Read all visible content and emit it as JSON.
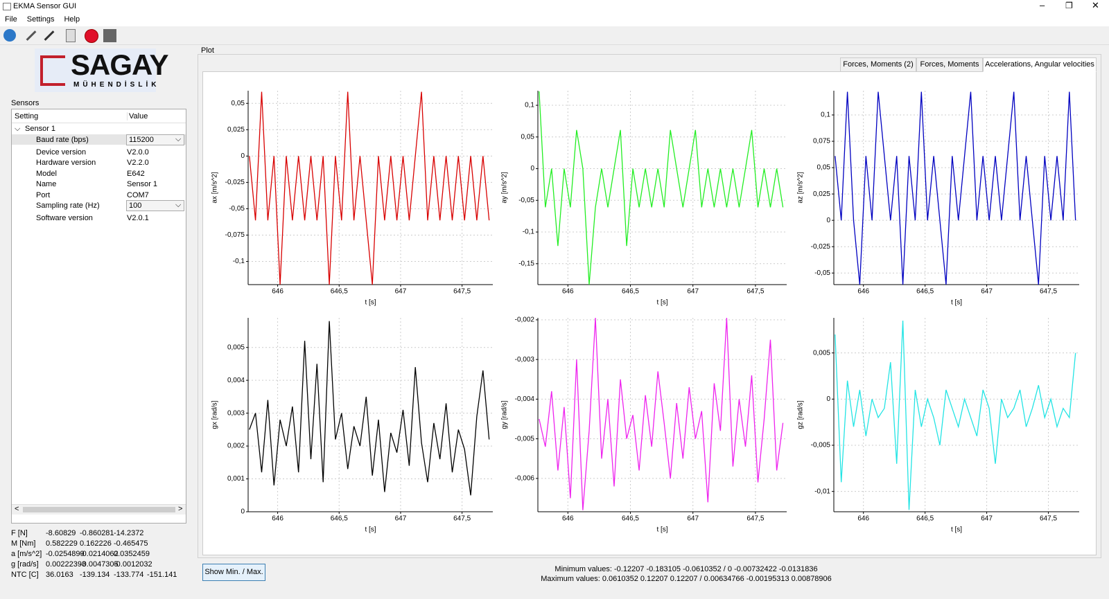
{
  "window": {
    "title": "EKMA Sensor GUI",
    "menu": [
      "File",
      "Settings",
      "Help"
    ]
  },
  "logo": {
    "name": "SAGAY",
    "sub": "MÜHENDİSLİK"
  },
  "sensors": {
    "title": "Sensors",
    "columns": [
      "Setting",
      "Value"
    ],
    "group": "Sensor 1",
    "rows": [
      [
        "Baud rate (bps)",
        "115200"
      ],
      [
        "Device version",
        "V2.0.0"
      ],
      [
        "Hardware version",
        "V2.2.0"
      ],
      [
        "Model",
        "E642"
      ],
      [
        "Name",
        "Sensor 1"
      ],
      [
        "Port",
        "COM7"
      ],
      [
        "Sampling rate (Hz)",
        "100"
      ],
      [
        "Software version",
        "V2.0.1"
      ]
    ]
  },
  "readouts": [
    [
      "F [N]",
      "-8.60829",
      "-0.860281",
      "-14.2372"
    ],
    [
      "M [Nm]",
      "0.582229",
      "0.162226",
      "-0.465475"
    ],
    [
      "a [m/s^2]",
      "-0.0254899",
      "-0.0214062",
      "0.0352459"
    ],
    [
      "g [rad/s]",
      "0.00222393",
      "-0.0047305",
      "-0.0012032"
    ],
    [
      "NTC [C]",
      "36.0163",
      "-139.134",
      "-133.774",
      "-151.141"
    ]
  ],
  "plot": {
    "title": "Plot",
    "tabs": [
      "Forces, Moments (2)",
      "Forces, Moments",
      "Accelerations, Angular velocities"
    ],
    "active_tab": 2,
    "button": "Show Min. / Max.",
    "min_text": "Minimum values: -0.12207 -0.183105 -0.0610352 / 0 -0.00732422 -0.0131836",
    "max_text": "Maximum values: 0.0610352 0.12207 0.12207 / 0.00634766 -0.00195313 0.00878906"
  },
  "chart_data": [
    {
      "type": "line",
      "ylabel": "ax [m/s^2]",
      "xlabel": "t [s]",
      "color": "#d80000",
      "grid": true,
      "x": [
        645.77,
        645.82,
        645.87,
        645.92,
        645.97,
        646.02,
        646.07,
        646.12,
        646.17,
        646.22,
        646.27,
        646.32,
        646.37,
        646.42,
        646.47,
        646.52,
        646.57,
        646.62,
        646.67,
        646.72,
        646.77,
        646.82,
        646.87,
        646.92,
        646.97,
        647.02,
        647.07,
        647.12,
        647.17,
        647.22,
        647.27,
        647.32,
        647.37,
        647.42,
        647.47,
        647.52,
        647.57,
        647.62,
        647.67,
        647.72
      ],
      "values": [
        0,
        -0.061,
        0.061,
        -0.061,
        0,
        -0.122,
        0,
        -0.061,
        0,
        -0.061,
        0,
        -0.061,
        0,
        -0.122,
        0,
        -0.061,
        0.061,
        -0.061,
        0,
        -0.061,
        -0.122,
        0,
        -0.061,
        0,
        -0.061,
        0,
        -0.061,
        0,
        0.061,
        -0.061,
        0,
        -0.061,
        0,
        -0.061,
        0,
        -0.061,
        0,
        -0.061,
        0,
        -0.061
      ],
      "xlim": [
        645.76,
        647.75
      ],
      "ylim": [
        -0.122,
        0.062
      ],
      "xticks": [
        646,
        {
          "value": 646.5,
          "label": "646,5"
        },
        647,
        {
          "value": 647.5,
          "label": "647,5"
        }
      ],
      "yticks": [
        {
          "value": 0.05,
          "label": "0,05"
        },
        {
          "value": 0.025,
          "label": "0,025"
        },
        0,
        {
          "value": -0.025,
          "label": "-0,025"
        },
        {
          "value": -0.05,
          "label": "-0,05"
        },
        {
          "value": -0.075,
          "label": "-0,075"
        },
        {
          "value": -0.1,
          "label": "-0,1"
        }
      ]
    },
    {
      "type": "line",
      "ylabel": "ay [m/s^2]",
      "xlabel": "t [s]",
      "color": "#22ee22",
      "grid": true,
      "x": [
        645.77,
        645.82,
        645.87,
        645.92,
        645.97,
        646.02,
        646.07,
        646.12,
        646.17,
        646.22,
        646.27,
        646.32,
        646.37,
        646.42,
        646.47,
        646.52,
        646.57,
        646.62,
        646.67,
        646.72,
        646.77,
        646.82,
        646.87,
        646.92,
        646.97,
        647.02,
        647.07,
        647.12,
        647.17,
        647.22,
        647.27,
        647.32,
        647.37,
        647.42,
        647.47,
        647.52,
        647.57,
        647.62,
        647.67,
        647.72
      ],
      "values": [
        0.122,
        -0.061,
        0,
        -0.122,
        0,
        -0.061,
        0.061,
        0,
        -0.183,
        -0.061,
        0,
        -0.061,
        0,
        0.061,
        -0.122,
        0,
        -0.061,
        0,
        -0.061,
        0,
        -0.061,
        0.061,
        0,
        -0.061,
        0,
        0.061,
        -0.061,
        0,
        -0.061,
        0,
        -0.061,
        0,
        -0.061,
        0,
        0.061,
        -0.061,
        0,
        -0.061,
        0,
        -0.061
      ],
      "xlim": [
        645.76,
        647.75
      ],
      "ylim": [
        -0.183,
        0.123
      ],
      "xticks": [
        646,
        {
          "value": 646.5,
          "label": "646,5"
        },
        647,
        {
          "value": 647.5,
          "label": "647,5"
        }
      ],
      "yticks": [
        {
          "value": 0.1,
          "label": "0,1"
        },
        {
          "value": 0.05,
          "label": "0,05"
        },
        0,
        {
          "value": -0.05,
          "label": "-0,05"
        },
        {
          "value": -0.1,
          "label": "-0,1"
        },
        {
          "value": -0.15,
          "label": "-0,15"
        }
      ]
    },
    {
      "type": "line",
      "ylabel": "az [m/s^2]",
      "xlabel": "t [s]",
      "color": "#0000c0",
      "grid": true,
      "x": [
        645.77,
        645.82,
        645.87,
        645.92,
        645.97,
        646.02,
        646.07,
        646.12,
        646.17,
        646.22,
        646.27,
        646.32,
        646.37,
        646.42,
        646.47,
        646.52,
        646.57,
        646.62,
        646.67,
        646.72,
        646.77,
        646.82,
        646.87,
        646.92,
        646.97,
        647.02,
        647.07,
        647.12,
        647.17,
        647.22,
        647.27,
        647.32,
        647.37,
        647.42,
        647.47,
        647.52,
        647.57,
        647.62,
        647.67,
        647.72
      ],
      "values": [
        0.061,
        0,
        0.122,
        0,
        -0.061,
        0.061,
        0,
        0.122,
        0.061,
        0,
        0.061,
        -0.061,
        0.061,
        0,
        0.122,
        0,
        0.061,
        0,
        -0.061,
        0.061,
        0,
        0.061,
        0.122,
        0,
        0.061,
        0,
        0.061,
        0,
        0.061,
        0.122,
        0,
        0.061,
        0,
        -0.061,
        0.061,
        0,
        0.061,
        0,
        0.122,
        0
      ],
      "xlim": [
        645.76,
        647.75
      ],
      "ylim": [
        -0.061,
        0.123
      ],
      "xticks": [
        646,
        {
          "value": 646.5,
          "label": "646,5"
        },
        647,
        {
          "value": 647.5,
          "label": "647,5"
        }
      ],
      "yticks": [
        {
          "value": 0.1,
          "label": "0,1"
        },
        {
          "value": 0.075,
          "label": "0,075"
        },
        {
          "value": 0.05,
          "label": "0,05"
        },
        {
          "value": 0.025,
          "label": "0,025"
        },
        0,
        {
          "value": -0.025,
          "label": "-0,025"
        },
        {
          "value": -0.05,
          "label": "-0,05"
        }
      ]
    },
    {
      "type": "line",
      "ylabel": "gx [rad/s]",
      "xlabel": "t [s]",
      "color": "#000000",
      "grid": true,
      "x": [
        645.77,
        645.82,
        645.87,
        645.92,
        645.97,
        646.02,
        646.07,
        646.12,
        646.17,
        646.22,
        646.27,
        646.32,
        646.37,
        646.42,
        646.47,
        646.52,
        646.57,
        646.62,
        646.67,
        646.72,
        646.77,
        646.82,
        646.87,
        646.92,
        646.97,
        647.02,
        647.07,
        647.12,
        647.17,
        647.22,
        647.27,
        647.32,
        647.37,
        647.42,
        647.47,
        647.52,
        647.57,
        647.62,
        647.67,
        647.72
      ],
      "values": [
        0.0025,
        0.003,
        0.0012,
        0.0034,
        0.0008,
        0.0028,
        0.002,
        0.0032,
        0.0012,
        0.0052,
        0.0016,
        0.0045,
        0.0009,
        0.0058,
        0.0022,
        0.003,
        0.0013,
        0.0026,
        0.002,
        0.0035,
        0.0011,
        0.0028,
        0.0006,
        0.0024,
        0.0018,
        0.0031,
        0.0014,
        0.0044,
        0.0021,
        0.0009,
        0.0027,
        0.0016,
        0.0033,
        0.0012,
        0.0025,
        0.0019,
        0.0005,
        0.0029,
        0.0043,
        0.0022
      ],
      "xlim": [
        645.76,
        647.75
      ],
      "ylim": [
        0,
        0.0059
      ],
      "xticks": [
        646,
        {
          "value": 646.5,
          "label": "646,5"
        },
        647,
        {
          "value": 647.5,
          "label": "647,5"
        }
      ],
      "yticks": [
        {
          "value": 0.005,
          "label": "0,005"
        },
        {
          "value": 0.004,
          "label": "0,004"
        },
        {
          "value": 0.003,
          "label": "0,003"
        },
        {
          "value": 0.002,
          "label": "0,002"
        },
        {
          "value": 0.001,
          "label": "0,001"
        },
        0
      ]
    },
    {
      "type": "line",
      "ylabel": "gy [rad/s]",
      "xlabel": "t [s]",
      "color": "#ee22ee",
      "grid": true,
      "x": [
        645.77,
        645.82,
        645.87,
        645.92,
        645.97,
        646.02,
        646.07,
        646.12,
        646.17,
        646.22,
        646.27,
        646.32,
        646.37,
        646.42,
        646.47,
        646.52,
        646.57,
        646.62,
        646.67,
        646.72,
        646.77,
        646.82,
        646.87,
        646.92,
        646.97,
        647.02,
        647.07,
        647.12,
        647.17,
        647.22,
        647.27,
        647.32,
        647.37,
        647.42,
        647.47,
        647.52,
        647.57,
        647.62,
        647.67,
        647.72
      ],
      "values": [
        -0.0045,
        -0.0052,
        -0.0038,
        -0.0058,
        -0.0042,
        -0.0065,
        -0.003,
        -0.0068,
        -0.0048,
        -0.00195,
        -0.0055,
        -0.004,
        -0.0062,
        -0.0035,
        -0.005,
        -0.0044,
        -0.0058,
        -0.0039,
        -0.0052,
        -0.0033,
        -0.0046,
        -0.006,
        -0.0041,
        -0.0055,
        -0.0037,
        -0.005,
        -0.0043,
        -0.0066,
        -0.0036,
        -0.0048,
        -0.00195,
        -0.0057,
        -0.004,
        -0.0052,
        -0.0034,
        -0.0061,
        -0.0045,
        -0.0025,
        -0.0058,
        -0.0046
      ],
      "xlim": [
        645.76,
        647.75
      ],
      "ylim": [
        -0.00684,
        -0.00195
      ],
      "xticks": [
        646,
        {
          "value": 646.5,
          "label": "646,5"
        },
        647,
        {
          "value": 647.5,
          "label": "647,5"
        }
      ],
      "yticks": [
        {
          "value": -0.002,
          "label": "-0,002"
        },
        {
          "value": -0.003,
          "label": "-0,003"
        },
        {
          "value": -0.004,
          "label": "-0,004"
        },
        {
          "value": -0.005,
          "label": "-0,005"
        },
        {
          "value": -0.006,
          "label": "-0,006"
        }
      ]
    },
    {
      "type": "line",
      "ylabel": "gz [rad/s]",
      "xlabel": "t [s]",
      "color": "#22e4e4",
      "grid": true,
      "x": [
        645.77,
        645.82,
        645.87,
        645.92,
        645.97,
        646.02,
        646.07,
        646.12,
        646.17,
        646.22,
        646.27,
        646.32,
        646.37,
        646.42,
        646.47,
        646.52,
        646.57,
        646.62,
        646.67,
        646.72,
        646.77,
        646.82,
        646.87,
        646.92,
        646.97,
        647.02,
        647.07,
        647.12,
        647.17,
        647.22,
        647.27,
        647.32,
        647.37,
        647.42,
        647.47,
        647.52,
        647.57,
        647.62,
        647.67,
        647.72
      ],
      "values": [
        0.007,
        -0.009,
        0.002,
        -0.003,
        0.001,
        -0.004,
        0,
        -0.002,
        -0.001,
        0.004,
        -0.007,
        0.0085,
        -0.012,
        0.001,
        -0.003,
        0,
        -0.002,
        -0.005,
        0.001,
        -0.001,
        -0.003,
        0,
        -0.002,
        -0.004,
        0.001,
        -0.001,
        -0.007,
        0,
        -0.002,
        -0.001,
        0.001,
        -0.003,
        -0.001,
        0.0015,
        -0.002,
        0,
        -0.003,
        -0.001,
        -0.002,
        0.005
      ],
      "xlim": [
        645.76,
        647.75
      ],
      "ylim": [
        -0.0122,
        0.0088
      ],
      "xticks": [
        646,
        {
          "value": 646.5,
          "label": "646,5"
        },
        647,
        {
          "value": 647.5,
          "label": "647,5"
        }
      ],
      "yticks": [
        {
          "value": 0.005,
          "label": "0,005"
        },
        0,
        {
          "value": -0.005,
          "label": "-0,005"
        },
        {
          "value": -0.01,
          "label": "-0,01"
        }
      ]
    }
  ]
}
